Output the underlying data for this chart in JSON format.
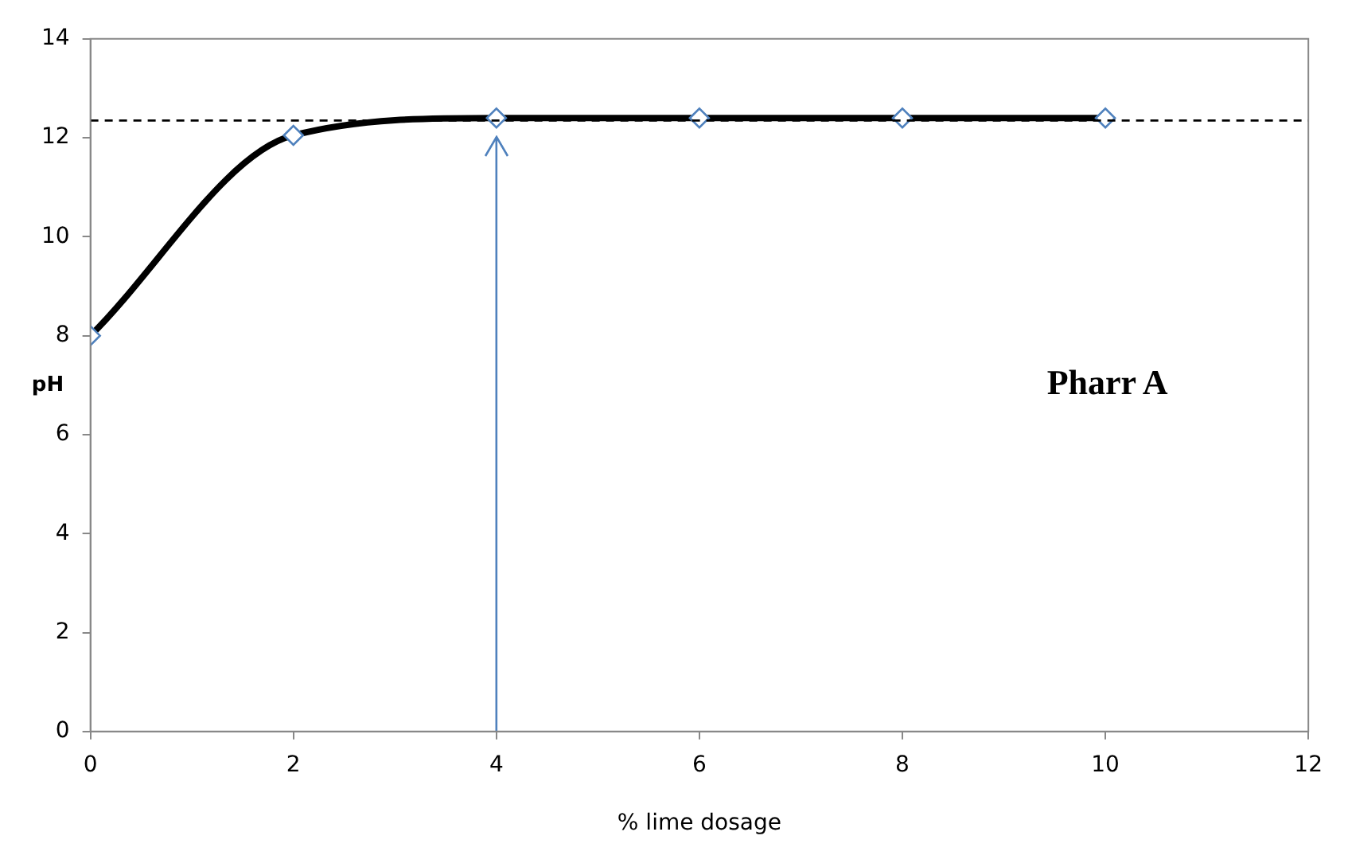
{
  "chart_data": {
    "type": "line",
    "xlabel": "% lime dosage",
    "ylabel": "pH",
    "x": [
      0,
      2,
      4,
      6,
      8,
      10
    ],
    "series": [
      {
        "type": "line",
        "color": "#000000",
        "marker": "none",
        "values": [
          8,
          12.05,
          12.4,
          12.4,
          12.4,
          12.4
        ]
      },
      {
        "type": "scatter",
        "color": "#4f81bd",
        "marker": "diamond",
        "values": [
          8,
          12.05,
          12.4,
          12.4,
          12.4,
          12.4
        ]
      }
    ],
    "xlim": [
      0,
      12
    ],
    "xticks": [
      0,
      2,
      4,
      6,
      8,
      10,
      12
    ],
    "ylim": [
      0,
      14
    ],
    "yticks": [
      0,
      2,
      4,
      6,
      8,
      10,
      12,
      14
    ],
    "grid": false,
    "legend": false,
    "ref_lines": [
      {
        "axis": "y",
        "value": 12.35,
        "color": "#000000",
        "line_style": "dashed"
      },
      {
        "axis": "x",
        "value": 4,
        "color": "#4f81bd",
        "line_style": "solid"
      }
    ],
    "annotations": [
      "Pharr A"
    ]
  }
}
